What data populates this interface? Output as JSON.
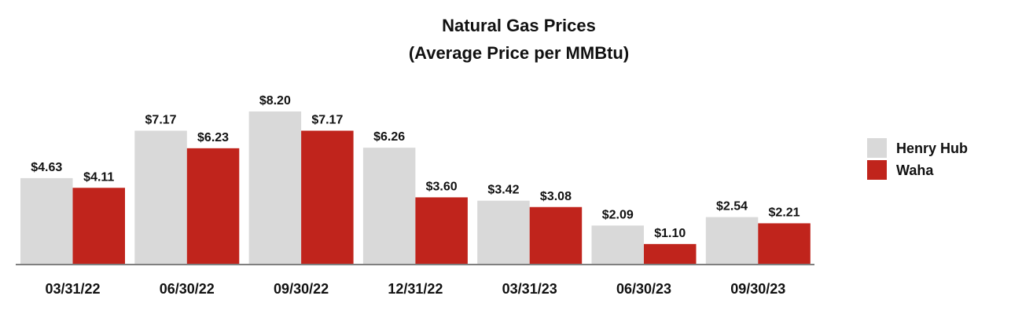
{
  "chart_data": {
    "type": "bar",
    "title": "Natural Gas Prices",
    "subtitle": "(Average Price per MMBtu)",
    "categories": [
      "03/31/22",
      "06/30/22",
      "09/30/22",
      "12/31/22",
      "03/31/23",
      "06/30/23",
      "09/30/23"
    ],
    "series": [
      {
        "name": "Henry Hub",
        "color": "#d9d9d9",
        "values": [
          4.63,
          7.17,
          8.2,
          6.26,
          3.42,
          2.09,
          2.54
        ],
        "labels": [
          "$4.63",
          "$7.17",
          "$8.20",
          "$6.26",
          "$3.42",
          "$2.09",
          "$2.54"
        ]
      },
      {
        "name": "Waha",
        "color": "#c0241c",
        "values": [
          4.11,
          6.23,
          7.17,
          3.6,
          3.08,
          1.1,
          2.21
        ],
        "labels": [
          "$4.11",
          "$6.23",
          "$7.17",
          "$3.60",
          "$3.08",
          "$1.10",
          "$2.21"
        ]
      }
    ],
    "xlabel": "",
    "ylabel": "",
    "ylim": [
      0,
      8.2
    ],
    "grid": false,
    "legend_position": "right"
  }
}
